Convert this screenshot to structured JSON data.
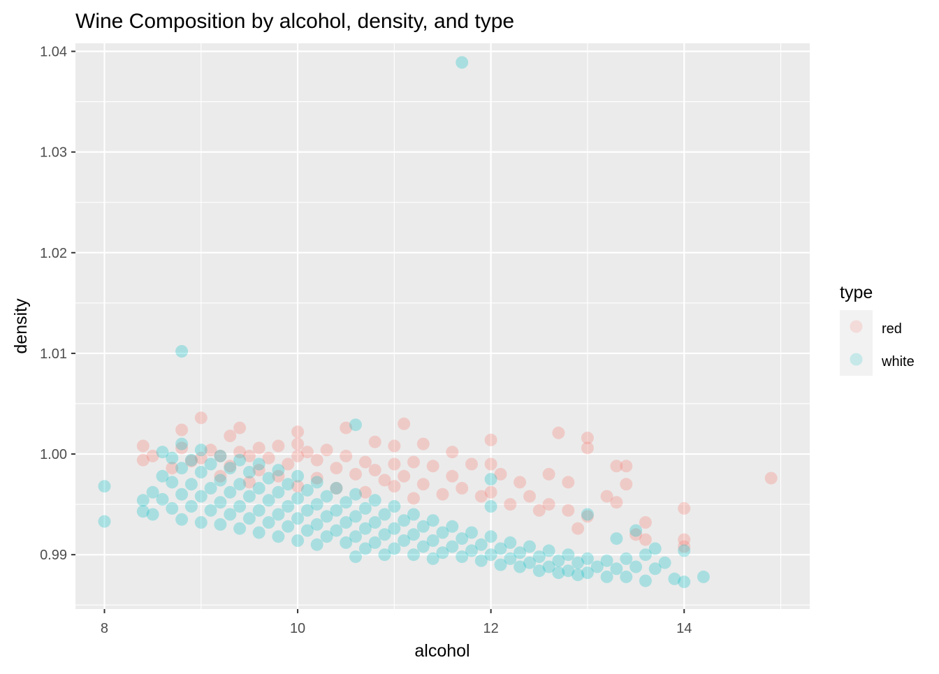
{
  "chart_data": {
    "type": "scatter",
    "title": "Wine Composition by alcohol, density, and type",
    "xlabel": "alcohol",
    "ylabel": "density",
    "xlim": [
      7.7,
      15.3
    ],
    "ylim": [
      0.9846,
      1.0408
    ],
    "x_ticks": [
      8,
      10,
      12,
      14
    ],
    "y_ticks": [
      0.99,
      1.0,
      1.01,
      1.02,
      1.03,
      1.04
    ],
    "x_tick_labels": [
      "8",
      "10",
      "12",
      "14"
    ],
    "y_tick_labels": [
      "0.99",
      "1.00",
      "1.01",
      "1.02",
      "1.03",
      "1.04"
    ],
    "grid": true,
    "legend": {
      "title": "type",
      "position": "right",
      "entries": [
        {
          "label": "red",
          "color": "#F8766D"
        },
        {
          "label": "white",
          "color": "#00BFC4"
        }
      ]
    },
    "point_alpha": 0.1,
    "series": [
      {
        "name": "red",
        "color": "#F8766D",
        "points": [
          [
            8.4,
            1.0008
          ],
          [
            8.4,
            0.9994
          ],
          [
            8.5,
            0.9998
          ],
          [
            8.7,
            0.9986
          ],
          [
            8.8,
            1.0024
          ],
          [
            8.8,
            1.0006
          ],
          [
            8.9,
            0.9993
          ],
          [
            9.0,
            1.0036
          ],
          [
            9.0,
            0.9996
          ],
          [
            9.1,
            1.0004
          ],
          [
            9.2,
            0.9998
          ],
          [
            9.2,
            0.9978
          ],
          [
            9.3,
            1.0018
          ],
          [
            9.3,
            0.9988
          ],
          [
            9.4,
            1.0026
          ],
          [
            9.4,
            1.0002
          ],
          [
            9.5,
            0.9998
          ],
          [
            9.5,
            0.9972
          ],
          [
            9.6,
            1.0006
          ],
          [
            9.6,
            0.9984
          ],
          [
            9.7,
            0.9996
          ],
          [
            9.8,
            1.0008
          ],
          [
            9.8,
            0.9978
          ],
          [
            9.9,
            0.999
          ],
          [
            10.0,
            1.0022
          ],
          [
            10.0,
            1.001
          ],
          [
            10.0,
            0.9998
          ],
          [
            10.0,
            0.9968
          ],
          [
            10.1,
            1.0002
          ],
          [
            10.2,
            0.9994
          ],
          [
            10.2,
            0.9976
          ],
          [
            10.3,
            1.0004
          ],
          [
            10.4,
            0.9986
          ],
          [
            10.4,
            0.9966
          ],
          [
            10.5,
            1.0026
          ],
          [
            10.5,
            0.9998
          ],
          [
            10.6,
            0.998
          ],
          [
            10.7,
            0.9992
          ],
          [
            10.7,
            0.9962
          ],
          [
            10.8,
            1.0012
          ],
          [
            10.8,
            0.9984
          ],
          [
            10.9,
            0.9974
          ],
          [
            11.0,
            1.0008
          ],
          [
            11.0,
            0.999
          ],
          [
            11.0,
            0.9968
          ],
          [
            11.1,
            1.003
          ],
          [
            11.1,
            0.9978
          ],
          [
            11.2,
            0.9992
          ],
          [
            11.2,
            0.9956
          ],
          [
            11.3,
            1.001
          ],
          [
            11.3,
            0.997
          ],
          [
            11.4,
            0.9988
          ],
          [
            11.5,
            0.996
          ],
          [
            11.6,
            1.0002
          ],
          [
            11.6,
            0.9978
          ],
          [
            11.7,
            0.9966
          ],
          [
            11.8,
            0.999
          ],
          [
            11.9,
            0.9958
          ],
          [
            12.0,
            1.0014
          ],
          [
            12.0,
            0.999
          ],
          [
            12.0,
            0.9962
          ],
          [
            12.1,
            0.998
          ],
          [
            12.2,
            0.995
          ],
          [
            12.3,
            0.9972
          ],
          [
            12.4,
            0.9958
          ],
          [
            12.5,
            0.9944
          ],
          [
            12.6,
            0.998
          ],
          [
            12.6,
            0.995
          ],
          [
            12.7,
            1.0021
          ],
          [
            12.8,
            0.9972
          ],
          [
            12.8,
            0.9944
          ],
          [
            12.9,
            0.9926
          ],
          [
            13.0,
            1.0016
          ],
          [
            13.0,
            1.0006
          ],
          [
            13.0,
            0.9938
          ],
          [
            13.2,
            0.9958
          ],
          [
            13.3,
            0.9988
          ],
          [
            13.3,
            0.9952
          ],
          [
            13.4,
            0.9988
          ],
          [
            13.4,
            0.997
          ],
          [
            13.5,
            0.992
          ],
          [
            13.6,
            0.9932
          ],
          [
            13.6,
            0.9915
          ],
          [
            14.0,
            0.9946
          ],
          [
            14.0,
            0.9915
          ],
          [
            14.0,
            0.9908
          ],
          [
            14.9,
            0.9976
          ]
        ]
      },
      {
        "name": "white",
        "color": "#00BFC4",
        "points": [
          [
            8.0,
            0.9968
          ],
          [
            8.0,
            0.9933
          ],
          [
            8.4,
            0.9954
          ],
          [
            8.4,
            0.9943
          ],
          [
            8.5,
            0.9962
          ],
          [
            8.5,
            0.994
          ],
          [
            8.6,
            1.0002
          ],
          [
            8.6,
            0.9978
          ],
          [
            8.6,
            0.9955
          ],
          [
            8.7,
            0.9996
          ],
          [
            8.7,
            0.9972
          ],
          [
            8.7,
            0.9946
          ],
          [
            8.8,
            1.0102
          ],
          [
            8.8,
            1.001
          ],
          [
            8.8,
            0.9986
          ],
          [
            8.8,
            0.996
          ],
          [
            8.8,
            0.9935
          ],
          [
            8.9,
            0.9994
          ],
          [
            8.9,
            0.997
          ],
          [
            8.9,
            0.9948
          ],
          [
            9.0,
            1.0004
          ],
          [
            9.0,
            0.9982
          ],
          [
            9.0,
            0.9958
          ],
          [
            9.0,
            0.9932
          ],
          [
            9.1,
            0.999
          ],
          [
            9.1,
            0.9966
          ],
          [
            9.1,
            0.9944
          ],
          [
            9.2,
            0.9998
          ],
          [
            9.2,
            0.9974
          ],
          [
            9.2,
            0.9952
          ],
          [
            9.2,
            0.993
          ],
          [
            9.3,
            0.9986
          ],
          [
            9.3,
            0.9962
          ],
          [
            9.3,
            0.994
          ],
          [
            9.4,
            0.9994
          ],
          [
            9.4,
            0.997
          ],
          [
            9.4,
            0.9948
          ],
          [
            9.4,
            0.9926
          ],
          [
            9.5,
            0.9982
          ],
          [
            9.5,
            0.9958
          ],
          [
            9.5,
            0.9936
          ],
          [
            9.6,
            0.999
          ],
          [
            9.6,
            0.9966
          ],
          [
            9.6,
            0.9944
          ],
          [
            9.6,
            0.9922
          ],
          [
            9.7,
            0.9976
          ],
          [
            9.7,
            0.9954
          ],
          [
            9.7,
            0.9932
          ],
          [
            9.8,
            0.9984
          ],
          [
            9.8,
            0.9962
          ],
          [
            9.8,
            0.994
          ],
          [
            9.8,
            0.9918
          ],
          [
            9.9,
            0.997
          ],
          [
            9.9,
            0.9948
          ],
          [
            9.9,
            0.9928
          ],
          [
            10.0,
            0.9978
          ],
          [
            10.0,
            0.9956
          ],
          [
            10.0,
            0.9936
          ],
          [
            10.0,
            0.9914
          ],
          [
            10.1,
            0.9964
          ],
          [
            10.1,
            0.9944
          ],
          [
            10.1,
            0.9924
          ],
          [
            10.2,
            0.9972
          ],
          [
            10.2,
            0.995
          ],
          [
            10.2,
            0.993
          ],
          [
            10.2,
            0.991
          ],
          [
            10.3,
            0.9958
          ],
          [
            10.3,
            0.9938
          ],
          [
            10.3,
            0.9918
          ],
          [
            10.4,
            0.9966
          ],
          [
            10.4,
            0.9944
          ],
          [
            10.4,
            0.9924
          ],
          [
            10.5,
            0.9952
          ],
          [
            10.5,
            0.9932
          ],
          [
            10.5,
            0.9912
          ],
          [
            10.6,
            1.0029
          ],
          [
            10.6,
            0.996
          ],
          [
            10.6,
            0.9938
          ],
          [
            10.6,
            0.9918
          ],
          [
            10.6,
            0.9898
          ],
          [
            10.7,
            0.9946
          ],
          [
            10.7,
            0.9926
          ],
          [
            10.7,
            0.9906
          ],
          [
            10.8,
            0.9954
          ],
          [
            10.8,
            0.9932
          ],
          [
            10.8,
            0.9912
          ],
          [
            10.9,
            0.994
          ],
          [
            10.9,
            0.992
          ],
          [
            10.9,
            0.99
          ],
          [
            11.0,
            0.9948
          ],
          [
            11.0,
            0.9926
          ],
          [
            11.0,
            0.9906
          ],
          [
            11.1,
            0.9934
          ],
          [
            11.1,
            0.9914
          ],
          [
            11.2,
            0.994
          ],
          [
            11.2,
            0.992
          ],
          [
            11.2,
            0.99
          ],
          [
            11.3,
            0.9928
          ],
          [
            11.3,
            0.9908
          ],
          [
            11.4,
            0.9934
          ],
          [
            11.4,
            0.9914
          ],
          [
            11.4,
            0.9896
          ],
          [
            11.5,
            0.9922
          ],
          [
            11.5,
            0.9902
          ],
          [
            11.6,
            0.9928
          ],
          [
            11.6,
            0.9908
          ],
          [
            11.7,
            1.0389
          ],
          [
            11.7,
            0.9916
          ],
          [
            11.7,
            0.9898
          ],
          [
            11.8,
            0.9922
          ],
          [
            11.8,
            0.9904
          ],
          [
            11.9,
            0.991
          ],
          [
            11.9,
            0.9894
          ],
          [
            12.0,
            0.9975
          ],
          [
            12.0,
            0.9948
          ],
          [
            12.0,
            0.9918
          ],
          [
            12.0,
            0.99
          ],
          [
            12.1,
            0.9906
          ],
          [
            12.1,
            0.989
          ],
          [
            12.2,
            0.9912
          ],
          [
            12.2,
            0.9896
          ],
          [
            12.3,
            0.9902
          ],
          [
            12.3,
            0.9888
          ],
          [
            12.4,
            0.9908
          ],
          [
            12.4,
            0.9892
          ],
          [
            12.5,
            0.9898
          ],
          [
            12.5,
            0.9884
          ],
          [
            12.6,
            0.9904
          ],
          [
            12.6,
            0.9888
          ],
          [
            12.7,
            0.9894
          ],
          [
            12.7,
            0.9882
          ],
          [
            12.8,
            0.99
          ],
          [
            12.8,
            0.9884
          ],
          [
            12.9,
            0.9892
          ],
          [
            12.9,
            0.988
          ],
          [
            13.0,
            0.994
          ],
          [
            13.0,
            0.9896
          ],
          [
            13.0,
            0.9882
          ],
          [
            13.1,
            0.9888
          ],
          [
            13.2,
            0.9894
          ],
          [
            13.2,
            0.9878
          ],
          [
            13.3,
            0.9916
          ],
          [
            13.3,
            0.9886
          ],
          [
            13.4,
            0.9896
          ],
          [
            13.4,
            0.9878
          ],
          [
            13.5,
            0.9924
          ],
          [
            13.5,
            0.9888
          ],
          [
            13.6,
            0.99
          ],
          [
            13.6,
            0.9874
          ],
          [
            13.7,
            0.9906
          ],
          [
            13.7,
            0.9886
          ],
          [
            13.8,
            0.9892
          ],
          [
            13.9,
            0.9876
          ],
          [
            14.0,
            0.9904
          ],
          [
            14.0,
            0.9873
          ],
          [
            14.2,
            0.9878
          ]
        ]
      }
    ]
  }
}
